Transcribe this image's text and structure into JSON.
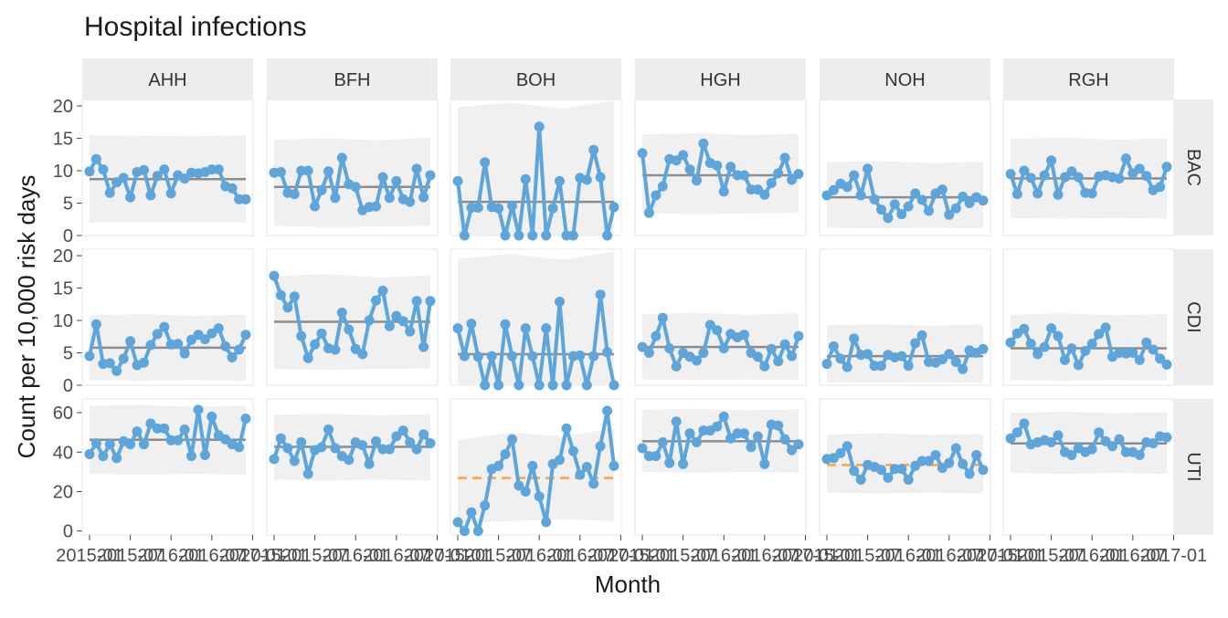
{
  "chart_data": {
    "type": "line",
    "title": "Hospital infections",
    "xlabel": "Month",
    "ylabel": "Count per 10,000 risk days",
    "columns": [
      "AHH",
      "BFH",
      "BOH",
      "HGH",
      "NOH",
      "RGH"
    ],
    "rows": [
      "BAC",
      "CDI",
      "UTI"
    ],
    "x_domain": [
      "2015-01",
      "2016-12"
    ],
    "x_tick_values": [
      "2015-01",
      "2015-07",
      "2016-01",
      "2016-07",
      "2017-01"
    ],
    "x_tick_labels": [
      "2015-01",
      "2015-07",
      "2016-01",
      "2016-07",
      "2017-01"
    ],
    "rows_axes": [
      {
        "ylim": [
          0,
          21
        ],
        "ticks": [
          0,
          5,
          10,
          15,
          20
        ]
      },
      {
        "ylim": [
          0,
          21
        ],
        "ticks": [
          0,
          5,
          10,
          15,
          20
        ]
      },
      {
        "ylim": [
          -2,
          67
        ],
        "ticks": [
          0,
          20,
          40,
          60
        ]
      }
    ],
    "grid": false,
    "colors": {
      "series": "#5DA5DA",
      "center": "#8C8C8C",
      "center_alt": "#FAA43A",
      "band": "#F0F0F0",
      "strip": "#EDEDED",
      "panel_border": "#E6E6E6"
    },
    "panels": [
      {
        "row": "BAC",
        "col": "AHH",
        "center": 8.7,
        "center_dashed": false,
        "band": [
          [
            2,
            15.5
          ],
          [
            2,
            15.4
          ],
          [
            2,
            15.3
          ],
          [
            2,
            15.5
          ]
        ],
        "values": [
          9.9,
          11.8,
          10.2,
          6.6,
          8.2,
          8.9,
          5.9,
          9.8,
          10.1,
          6.2,
          9.2,
          10.2,
          6.5,
          9.3,
          8.8,
          9.7,
          9.6,
          9.8,
          10.2,
          10.2,
          7.6,
          7.3,
          5.6,
          5.6
        ]
      },
      {
        "row": "BAC",
        "col": "BFH",
        "center": 7.5,
        "center_dashed": false,
        "band": [
          [
            1.5,
            14.8
          ],
          [
            1.3,
            15.0
          ],
          [
            1.4,
            14.7
          ],
          [
            1.5,
            15.1
          ]
        ],
        "values": [
          9.7,
          9.8,
          6.6,
          6.4,
          10.0,
          10.0,
          4.5,
          7.0,
          9.9,
          5.8,
          12.0,
          7.9,
          7.5,
          3.9,
          4.4,
          4.5,
          9.0,
          5.8,
          8.4,
          5.6,
          5.2,
          10.3,
          5.9,
          9.3
        ]
      },
      {
        "row": "BAC",
        "col": "BOH",
        "center": 5.2,
        "center_dashed": false,
        "band": [
          [
            0,
            19.8
          ],
          [
            0,
            20.5
          ],
          [
            0,
            19.6
          ],
          [
            0,
            20.8
          ]
        ],
        "values": [
          8.4,
          0,
          4.3,
          4.3,
          11.3,
          4.4,
          4.2,
          0,
          4.6,
          0,
          8.7,
          0,
          16.8,
          0,
          4.2,
          8.4,
          0,
          0,
          8.9,
          8.6,
          13.2,
          9.0,
          0,
          4.4
        ]
      },
      {
        "row": "BAC",
        "col": "HGH",
        "center": 9.3,
        "center_dashed": false,
        "band": [
          [
            3.5,
            15.6
          ],
          [
            3.3,
            15.8
          ],
          [
            3.4,
            15.5
          ],
          [
            3.5,
            15.7
          ]
        ],
        "values": [
          12.7,
          3.5,
          6.2,
          7.6,
          11.8,
          11.6,
          12.4,
          10.2,
          8.5,
          14.2,
          11.2,
          10.8,
          6.8,
          10.6,
          9.3,
          9.3,
          7.1,
          7.1,
          6.3,
          8.1,
          9.6,
          12.0,
          8.6,
          9.5
        ]
      },
      {
        "row": "BAC",
        "col": "NOH",
        "center": 5.9,
        "center_dashed": false,
        "band": [
          [
            1.2,
            11.3
          ],
          [
            1.1,
            11.5
          ],
          [
            1.2,
            11.2
          ],
          [
            1.1,
            11.4
          ]
        ],
        "values": [
          6.2,
          7.0,
          8.0,
          7.5,
          9.3,
          6.2,
          10.3,
          5.6,
          4.0,
          2.7,
          4.8,
          3.3,
          4.5,
          6.5,
          5.5,
          3.8,
          6.5,
          7.1,
          3.2,
          4.2,
          6.0,
          5.0,
          5.9,
          5.4
        ]
      },
      {
        "row": "BAC",
        "col": "RGH",
        "center": 8.8,
        "center_dashed": false,
        "band": [
          [
            2.7,
            14.9
          ],
          [
            2.6,
            15.1
          ],
          [
            2.7,
            14.8
          ],
          [
            2.6,
            15.0
          ]
        ],
        "values": [
          9.5,
          6.4,
          10.0,
          8.9,
          6.5,
          9.3,
          11.6,
          6.3,
          9.0,
          9.9,
          9.0,
          6.6,
          6.5,
          9.1,
          9.3,
          9.0,
          8.8,
          11.9,
          9.6,
          10.3,
          9.2,
          7.0,
          7.5,
          10.6
        ]
      },
      {
        "row": "CDI",
        "col": "AHH",
        "center": 5.8,
        "center_dashed": false,
        "band": [
          [
            0.8,
            10.8
          ],
          [
            0.7,
            11.0
          ],
          [
            0.8,
            10.7
          ],
          [
            0.7,
            10.9
          ]
        ],
        "values": [
          4.5,
          9.4,
          3.3,
          3.4,
          2.2,
          4.1,
          6.8,
          3.1,
          3.5,
          6.2,
          7.9,
          9.0,
          6.3,
          6.4,
          4.9,
          7.0,
          7.8,
          7.1,
          8.0,
          8.8,
          6.0,
          4.3,
          5.5,
          7.8
        ]
      },
      {
        "row": "CDI",
        "col": "BFH",
        "center": 9.8,
        "center_dashed": false,
        "band": [
          [
            2.5,
            16.8
          ],
          [
            2.4,
            17.2
          ],
          [
            2.5,
            16.6
          ],
          [
            2.6,
            17.0
          ]
        ],
        "values": [
          16.9,
          13.9,
          12.0,
          13.7,
          7.6,
          4.2,
          6.3,
          8.0,
          5.7,
          5.5,
          11.2,
          8.6,
          5.6,
          4.8,
          10.0,
          13.1,
          14.6,
          9.1,
          10.7,
          9.9,
          8.3,
          13.0,
          5.9,
          13.0
        ]
      },
      {
        "row": "CDI",
        "col": "BOH",
        "center": 4.8,
        "center_dashed": false,
        "band": [
          [
            0,
            19.5
          ],
          [
            0,
            20.3
          ],
          [
            0,
            19.4
          ],
          [
            0,
            20.6
          ]
        ],
        "values": [
          8.8,
          4.5,
          9.5,
          4.4,
          0,
          4.5,
          0,
          9.4,
          4.5,
          0,
          8.8,
          4.5,
          0,
          8.8,
          0,
          12.9,
          0,
          4.5,
          4.6,
          0,
          4.5,
          14.0,
          5.1,
          0
        ]
      },
      {
        "row": "CDI",
        "col": "HGH",
        "center": 5.9,
        "center_dashed": false,
        "band": [
          [
            0.9,
            11.0
          ],
          [
            0.8,
            11.2
          ],
          [
            0.9,
            10.9
          ],
          [
            0.8,
            11.1
          ]
        ],
        "values": [
          5.9,
          5.0,
          7.6,
          10.4,
          5.7,
          2.9,
          5.0,
          4.4,
          3.8,
          5.0,
          9.3,
          8.5,
          5.7,
          7.9,
          7.4,
          7.8,
          5.0,
          4.4,
          2.9,
          5.6,
          3.7,
          6.3,
          4.5,
          7.6
        ]
      },
      {
        "row": "CDI",
        "col": "NOH",
        "center": 4.5,
        "center_dashed": false,
        "band": [
          [
            0.5,
            9.3
          ],
          [
            0.4,
            9.4
          ],
          [
            0.5,
            9.2
          ],
          [
            0.4,
            9.4
          ]
        ],
        "values": [
          3.3,
          6.0,
          4.1,
          2.8,
          7.2,
          4.7,
          4.8,
          3.0,
          3.0,
          4.7,
          4.3,
          4.5,
          3.0,
          6.5,
          7.7,
          3.6,
          3.5,
          4.0,
          4.8,
          3.6,
          2.5,
          5.4,
          5.0,
          5.6
        ]
      },
      {
        "row": "CDI",
        "col": "RGH",
        "center": 5.7,
        "center_dashed": false,
        "band": [
          [
            0.8,
            10.9
          ],
          [
            0.7,
            11.1
          ],
          [
            0.8,
            10.8
          ],
          [
            0.7,
            11.0
          ]
        ],
        "values": [
          6.6,
          8.0,
          8.7,
          6.4,
          4.8,
          5.9,
          8.8,
          7.6,
          3.9,
          5.7,
          3.1,
          5.3,
          6.4,
          7.9,
          8.9,
          4.4,
          5.0,
          4.9,
          5.0,
          3.9,
          6.6,
          5.5,
          4.1,
          3.2
        ]
      },
      {
        "row": "UTI",
        "col": "AHH",
        "center": 46.3,
        "center_dashed": false,
        "band": [
          [
            29,
            63.5
          ],
          [
            28.5,
            64.0
          ],
          [
            29,
            63.0
          ],
          [
            28.5,
            63.8
          ]
        ],
        "values": [
          39.0,
          44.5,
          38.0,
          44.0,
          37.0,
          45.5,
          44.0,
          50.5,
          44.0,
          54.5,
          52.0,
          52.0,
          46.0,
          46.0,
          51.5,
          38.0,
          61.5,
          38.5,
          58.0,
          48.5,
          46.5,
          44.0,
          42.5,
          57.0
        ]
      },
      {
        "row": "UTI",
        "col": "BFH",
        "center": 42.7,
        "center_dashed": false,
        "band": [
          [
            26,
            59.0
          ],
          [
            25.5,
            59.5
          ],
          [
            26,
            58.7
          ],
          [
            25.5,
            59.3
          ]
        ],
        "values": [
          36.5,
          47.0,
          42.0,
          35.5,
          45.0,
          29.0,
          41.0,
          42.5,
          51.5,
          42.0,
          38.0,
          36.0,
          45.0,
          43.5,
          34.0,
          45.5,
          41.5,
          41.5,
          48.0,
          51.0,
          45.0,
          41.5,
          49.0,
          44.5
        ]
      },
      {
        "row": "UTI",
        "col": "BOH",
        "center": 26.9,
        "center_dashed": true,
        "band": [
          [
            4,
            46
          ],
          [
            5,
            50
          ],
          [
            6,
            48
          ],
          [
            5,
            52
          ]
        ],
        "values": [
          4.5,
          0,
          9.5,
          0,
          13.0,
          31.5,
          33.0,
          39.0,
          46.5,
          23.0,
          20.0,
          33.0,
          17.5,
          4.5,
          34.0,
          36.0,
          52.0,
          40.5,
          28.5,
          32.5,
          24.0,
          43.0,
          61.0,
          33.0
        ]
      },
      {
        "row": "UTI",
        "col": "HGH",
        "center": 45.5,
        "center_dashed": false,
        "band": [
          [
            30,
            61.5
          ],
          [
            29.5,
            62.0
          ],
          [
            30,
            61.2
          ],
          [
            29.5,
            61.8
          ]
        ],
        "values": [
          42.0,
          38.0,
          38.0,
          45.0,
          34.5,
          55.5,
          34.0,
          49.5,
          45.0,
          51.0,
          51.0,
          53.0,
          58.0,
          47.0,
          49.5,
          49.5,
          42.5,
          48.0,
          34.0,
          54.0,
          53.5,
          46.5,
          41.0,
          44.0
        ]
      },
      {
        "row": "UTI",
        "col": "NOH",
        "center": 33.5,
        "center_dashed": true,
        "band": [
          [
            19.5,
            49.0
          ],
          [
            19.0,
            49.5
          ],
          [
            19.5,
            48.8
          ],
          [
            19.0,
            49.2
          ]
        ],
        "values": [
          36.5,
          37.0,
          39.5,
          43.0,
          30.5,
          26.0,
          33.5,
          32.5,
          31.0,
          27.0,
          31.5,
          31.5,
          26.0,
          33.0,
          35.5,
          35.5,
          38.5,
          32.0,
          34.5,
          42.0,
          34.0,
          29.0,
          38.5,
          31.0
        ]
      },
      {
        "row": "UTI",
        "col": "RGH",
        "center": 44.4,
        "center_dashed": false,
        "band": [
          [
            29.5,
            60.0
          ],
          [
            29.0,
            60.5
          ],
          [
            29.5,
            59.8
          ],
          [
            29.0,
            60.3
          ]
        ],
        "values": [
          47.0,
          50.0,
          54.5,
          44.0,
          45.0,
          46.0,
          45.0,
          48.5,
          40.0,
          38.5,
          42.0,
          40.0,
          41.5,
          50.0,
          45.5,
          43.0,
          46.5,
          40.0,
          40.0,
          38.5,
          45.0,
          44.5,
          48.0,
          47.5
        ]
      }
    ]
  }
}
